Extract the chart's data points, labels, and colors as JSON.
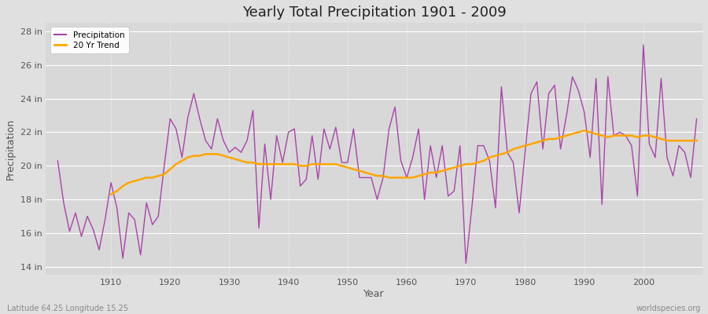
{
  "title": "Yearly Total Precipitation 1901 - 2009",
  "xlabel": "Year",
  "ylabel": "Precipitation",
  "lat_lon_label": "Latitude 64.25 Longitude 15.25",
  "watermark": "worldspecies.org",
  "precip_color": "#AA44AA",
  "trend_color": "#FFA500",
  "fig_bg_color": "#E0E0E0",
  "plot_bg_color": "#D8D8D8",
  "ylim": [
    13.5,
    28.5
  ],
  "yticks": [
    14,
    16,
    18,
    20,
    22,
    24,
    26,
    28
  ],
  "ytick_labels": [
    "14 in",
    "16 in",
    "18 in",
    "20 in",
    "22 in",
    "24 in",
    "26 in",
    "28 in"
  ],
  "xlim": [
    1899,
    2010
  ],
  "xticks": [
    1910,
    1920,
    1930,
    1940,
    1950,
    1960,
    1970,
    1980,
    1990,
    2000
  ],
  "years": [
    1901,
    1902,
    1903,
    1904,
    1905,
    1906,
    1907,
    1908,
    1909,
    1910,
    1911,
    1912,
    1913,
    1914,
    1915,
    1916,
    1917,
    1918,
    1919,
    1920,
    1921,
    1922,
    1923,
    1924,
    1925,
    1926,
    1927,
    1928,
    1929,
    1930,
    1931,
    1932,
    1933,
    1934,
    1935,
    1936,
    1937,
    1938,
    1939,
    1940,
    1941,
    1942,
    1943,
    1944,
    1945,
    1946,
    1947,
    1948,
    1949,
    1950,
    1951,
    1952,
    1953,
    1954,
    1955,
    1956,
    1957,
    1958,
    1959,
    1960,
    1961,
    1962,
    1963,
    1964,
    1965,
    1966,
    1967,
    1968,
    1969,
    1970,
    1971,
    1972,
    1973,
    1974,
    1975,
    1976,
    1977,
    1978,
    1979,
    1980,
    1981,
    1982,
    1983,
    1984,
    1985,
    1986,
    1987,
    1988,
    1989,
    1990,
    1991,
    1992,
    1993,
    1994,
    1995,
    1996,
    1997,
    1998,
    1999,
    2000,
    2001,
    2002,
    2003,
    2004,
    2005,
    2006,
    2007,
    2008,
    2009
  ],
  "precipitation": [
    20.3,
    17.8,
    16.1,
    17.2,
    15.8,
    17.0,
    16.2,
    15.0,
    16.8,
    19.0,
    17.5,
    14.5,
    17.2,
    16.8,
    14.7,
    17.8,
    16.5,
    17.0,
    20.0,
    22.8,
    22.2,
    20.5,
    22.9,
    24.3,
    22.8,
    21.5,
    21.0,
    22.8,
    21.5,
    20.8,
    21.1,
    20.8,
    21.5,
    23.3,
    16.3,
    21.3,
    18.0,
    21.8,
    20.2,
    22.0,
    22.2,
    18.8,
    19.2,
    21.8,
    19.2,
    22.2,
    21.0,
    22.3,
    20.2,
    20.2,
    22.2,
    19.3,
    19.3,
    19.3,
    18.0,
    19.3,
    22.2,
    23.5,
    20.3,
    19.3,
    20.5,
    22.2,
    18.0,
    21.2,
    19.3,
    21.2,
    18.2,
    18.5,
    21.2,
    14.2,
    17.5,
    21.2,
    21.2,
    20.3,
    17.5,
    24.7,
    20.8,
    20.2,
    17.2,
    20.8,
    24.3,
    25.0,
    21.0,
    24.3,
    24.8,
    21.0,
    23.0,
    25.3,
    24.5,
    23.2,
    20.5,
    25.2,
    17.7,
    25.3,
    21.8,
    22.0,
    21.8,
    21.2,
    18.2,
    27.2,
    21.3,
    20.5,
    25.2,
    20.5,
    19.4,
    21.2,
    20.8,
    19.3,
    22.8
  ],
  "trend": [
    null,
    null,
    null,
    null,
    null,
    null,
    null,
    null,
    null,
    18.3,
    18.5,
    18.8,
    19.0,
    19.1,
    19.2,
    19.3,
    19.3,
    19.4,
    19.5,
    19.8,
    20.1,
    20.3,
    20.5,
    20.6,
    20.6,
    20.7,
    20.7,
    20.7,
    20.6,
    20.5,
    20.4,
    20.3,
    20.2,
    20.2,
    20.1,
    20.1,
    20.1,
    20.1,
    20.1,
    20.1,
    20.1,
    20.0,
    20.0,
    20.1,
    20.1,
    20.1,
    20.1,
    20.1,
    20.0,
    19.9,
    19.8,
    19.7,
    19.6,
    19.5,
    19.4,
    19.4,
    19.3,
    19.3,
    19.3,
    19.3,
    19.3,
    19.4,
    19.5,
    19.6,
    19.6,
    19.7,
    19.8,
    19.9,
    20.0,
    20.1,
    20.1,
    20.2,
    20.3,
    20.5,
    20.6,
    20.7,
    20.8,
    21.0,
    21.1,
    21.2,
    21.3,
    21.4,
    21.5,
    21.6,
    21.6,
    21.7,
    21.8,
    21.9,
    22.0,
    22.1,
    22.0,
    21.9,
    21.8,
    21.7,
    21.8,
    21.8,
    21.8,
    21.8,
    21.7,
    21.8,
    21.8,
    21.7,
    21.6,
    21.5,
    21.5,
    21.5,
    21.5,
    21.5,
    21.5
  ]
}
